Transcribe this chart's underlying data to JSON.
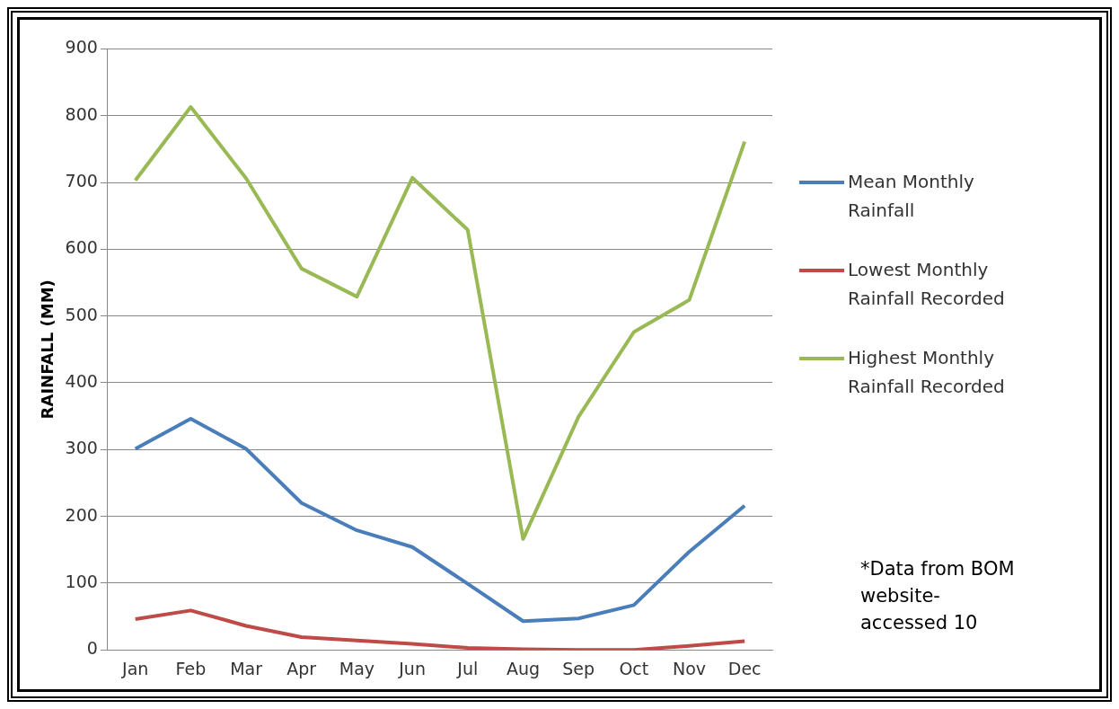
{
  "chart_data": {
    "type": "line",
    "ylabel": "RAINFALL (MM)",
    "categories": [
      "Jan",
      "Feb",
      "Mar",
      "Apr",
      "May",
      "Jun",
      "Jul",
      "Aug",
      "Sep",
      "Oct",
      "Nov",
      "Dec"
    ],
    "series": [
      {
        "name": "Mean Monthly Rainfall",
        "color": "#4a7ebb",
        "values": [
          301,
          346,
          301,
          220,
          179,
          154,
          99,
          43,
          47,
          67,
          147,
          216
        ]
      },
      {
        "name": "Lowest Monthly Rainfall Recorded",
        "color": "#be4b48",
        "values": [
          46,
          59,
          36,
          19,
          14,
          9,
          3,
          1,
          0,
          0,
          6,
          13
        ]
      },
      {
        "name": "Highest Monthly Rainfall Recorded",
        "color": "#98b954",
        "values": [
          703,
          813,
          706,
          571,
          529,
          707,
          629,
          166,
          349,
          476,
          524,
          761
        ]
      }
    ],
    "ylim": [
      0,
      900
    ],
    "yticks": [
      0,
      100,
      200,
      300,
      400,
      500,
      600,
      700,
      800,
      900
    ],
    "grid": "y",
    "legend": "right",
    "marker": "none",
    "line_style": "solid",
    "annotations": [
      "*Data from BOM website- accessed 10"
    ]
  }
}
